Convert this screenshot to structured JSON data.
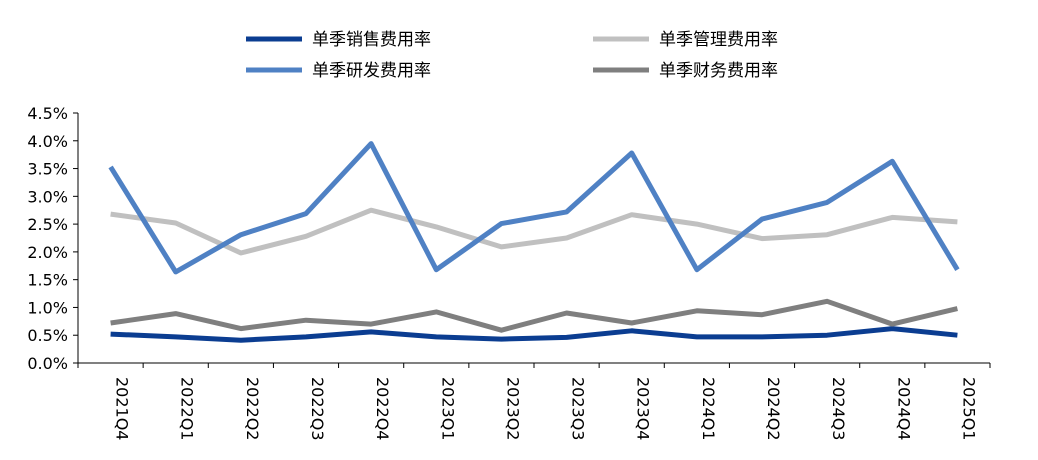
{
  "chart_data": {
    "type": "line",
    "categories": [
      "2021Q4",
      "2022Q1",
      "2022Q2",
      "2022Q3",
      "2022Q4",
      "2023Q1",
      "2023Q2",
      "2023Q3",
      "2023Q4",
      "2024Q1",
      "2024Q2",
      "2024Q3",
      "2024Q4",
      "2025Q1"
    ],
    "ylim": [
      0,
      4.5
    ],
    "yticks": [
      "0.0%",
      "0.5%",
      "1.0%",
      "1.5%",
      "2.0%",
      "2.5%",
      "3.0%",
      "3.5%",
      "4.0%",
      "4.5%"
    ],
    "grid": false,
    "legend_position": "top",
    "series": [
      {
        "name": "单季销售费用率",
        "color": "#0b3d91",
        "values": [
          0.52,
          0.47,
          0.41,
          0.47,
          0.56,
          0.47,
          0.43,
          0.46,
          0.58,
          0.47,
          0.47,
          0.5,
          0.62,
          0.5
        ]
      },
      {
        "name": "单季管理费用率",
        "color": "#c0c0c0",
        "values": [
          2.68,
          2.52,
          1.98,
          2.28,
          2.75,
          2.45,
          2.09,
          2.25,
          2.67,
          2.5,
          2.24,
          2.31,
          2.62,
          2.54
        ]
      },
      {
        "name": "单季研发费用率",
        "color": "#4f81c4",
        "values": [
          3.53,
          1.64,
          2.31,
          2.69,
          3.95,
          1.68,
          2.51,
          2.72,
          3.78,
          1.68,
          2.59,
          2.89,
          3.63,
          1.68
        ]
      },
      {
        "name": "单季财务费用率",
        "color": "#7f7f7f",
        "values": [
          0.72,
          0.89,
          0.62,
          0.77,
          0.7,
          0.92,
          0.59,
          0.9,
          0.72,
          0.94,
          0.87,
          1.11,
          0.7,
          0.98
        ]
      }
    ]
  }
}
